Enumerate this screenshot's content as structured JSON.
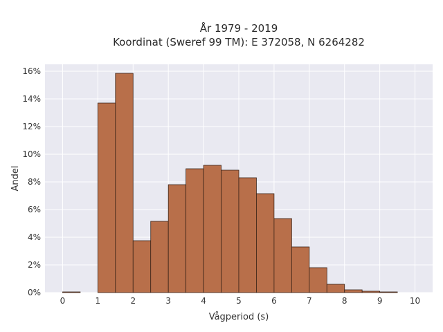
{
  "chart_data": {
    "type": "bar",
    "title_line1": "År 1979 - 2019",
    "title_line2": "Koordinat (Sweref 99 TM): E 372058, N 6264282",
    "xlabel": "Vågperiod (s)",
    "ylabel": "Andel",
    "bin_width": 0.5,
    "bins": [
      {
        "x0": 0.0,
        "value": 0.05
      },
      {
        "x0": 1.0,
        "value": 13.7
      },
      {
        "x0": 1.5,
        "value": 15.85
      },
      {
        "x0": 2.0,
        "value": 3.75
      },
      {
        "x0": 2.5,
        "value": 5.15
      },
      {
        "x0": 3.0,
        "value": 7.8
      },
      {
        "x0": 3.5,
        "value": 8.95
      },
      {
        "x0": 4.0,
        "value": 9.2
      },
      {
        "x0": 4.5,
        "value": 8.85
      },
      {
        "x0": 5.0,
        "value": 8.3
      },
      {
        "x0": 5.5,
        "value": 7.15
      },
      {
        "x0": 6.0,
        "value": 5.35
      },
      {
        "x0": 6.5,
        "value": 3.3
      },
      {
        "x0": 7.0,
        "value": 1.8
      },
      {
        "x0": 7.5,
        "value": 0.6
      },
      {
        "x0": 8.0,
        "value": 0.2
      },
      {
        "x0": 8.5,
        "value": 0.1
      },
      {
        "x0": 9.0,
        "value": 0.05
      }
    ],
    "xlim": [
      -0.5,
      10.5
    ],
    "ylim": [
      0,
      16.5
    ],
    "xticks": [
      "0",
      "1",
      "2",
      "3",
      "4",
      "5",
      "6",
      "7",
      "8",
      "9",
      "10"
    ],
    "yticks": [
      "0%",
      "2%",
      "4%",
      "6%",
      "8%",
      "10%",
      "12%",
      "14%",
      "16%"
    ],
    "grid": true,
    "colors": {
      "bar_fill": "#b86f4a",
      "bar_stroke": "#3a2418",
      "plot_background": "#e9e9f1",
      "grid": "#ffffff"
    }
  }
}
